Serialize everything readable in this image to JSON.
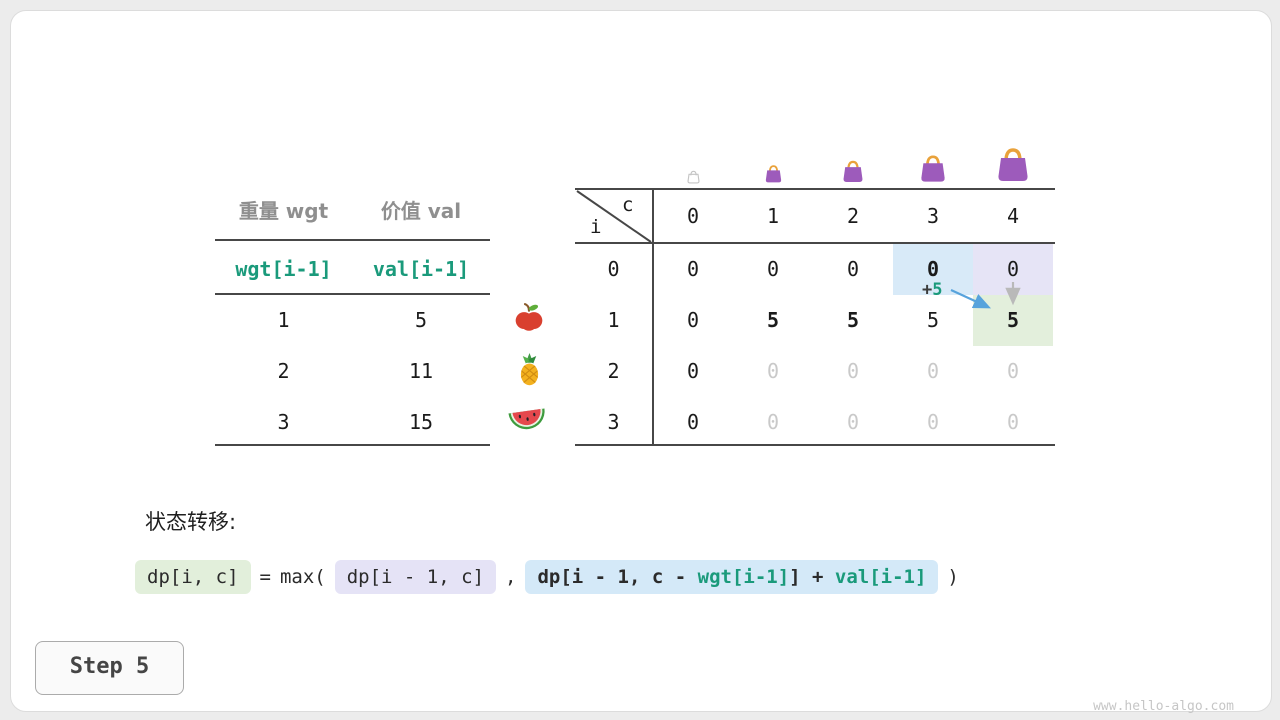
{
  "page": {
    "step_label": "Step 5",
    "watermark": "www.hello-algo.com"
  },
  "weights_table": {
    "col_headers": [
      "重量 wgt",
      "价值 val"
    ],
    "formula_row": {
      "wgt": "wgt[i-1]",
      "val": "val[i-1]"
    },
    "rows": [
      {
        "wgt": "1",
        "val": "5",
        "fruit": "apple-icon"
      },
      {
        "wgt": "2",
        "val": "11",
        "fruit": "pineapple-icon"
      },
      {
        "wgt": "3",
        "val": "15",
        "fruit": "watermelon-icon"
      }
    ]
  },
  "dp_table": {
    "corner": {
      "top": "c",
      "side": "i"
    },
    "col_headers": [
      "0",
      "1",
      "2",
      "3",
      "4"
    ],
    "row_headers": [
      "0",
      "1",
      "2",
      "3"
    ],
    "cells": [
      [
        "0",
        "0",
        "0",
        "0",
        "0"
      ],
      [
        "0",
        "5",
        "5",
        "5",
        "5"
      ],
      [
        "0",
        "0",
        "0",
        "0",
        "0"
      ],
      [
        "0",
        "0",
        "0",
        "0",
        "0"
      ]
    ],
    "cell_styles": [
      [
        "",
        "",
        "",
        "bold hl-blue",
        "hl-purple"
      ],
      [
        "",
        "bold",
        "bold",
        "",
        "bold hl-green"
      ],
      [
        "",
        "faded",
        "faded",
        "faded",
        "faded"
      ],
      [
        "",
        "faded",
        "faded",
        "faded",
        "faded"
      ]
    ],
    "annotation": {
      "plus": "+",
      "value": "5"
    },
    "bag_icons": [
      "bag-empty-icon",
      "bag-size1-icon",
      "bag-size2-icon",
      "bag-size3-icon",
      "bag-size4-icon"
    ]
  },
  "transition": {
    "label": "状态转移:",
    "lhs": "dp[i, c]",
    "equals": "=",
    "max_open": "max(",
    "arg1": "dp[i - 1, c]",
    "comma": ",",
    "arg2": {
      "part1": "dp[i - 1, c - ",
      "wgt": "wgt[i-1]",
      "part2": "] + ",
      "val": "val[i-1]"
    },
    "close": ")"
  },
  "colors": {
    "teal": "#1a9a7b",
    "highlight_blue": "#d8eaf8",
    "highlight_purple": "#e6e4f6",
    "highlight_green": "#e3efdc",
    "arrow_blue": "#57a3dc",
    "arrow_gray": "#b9b9b9",
    "bag_purple": "#9d5bbb",
    "bag_handle": "#e9a23b"
  }
}
